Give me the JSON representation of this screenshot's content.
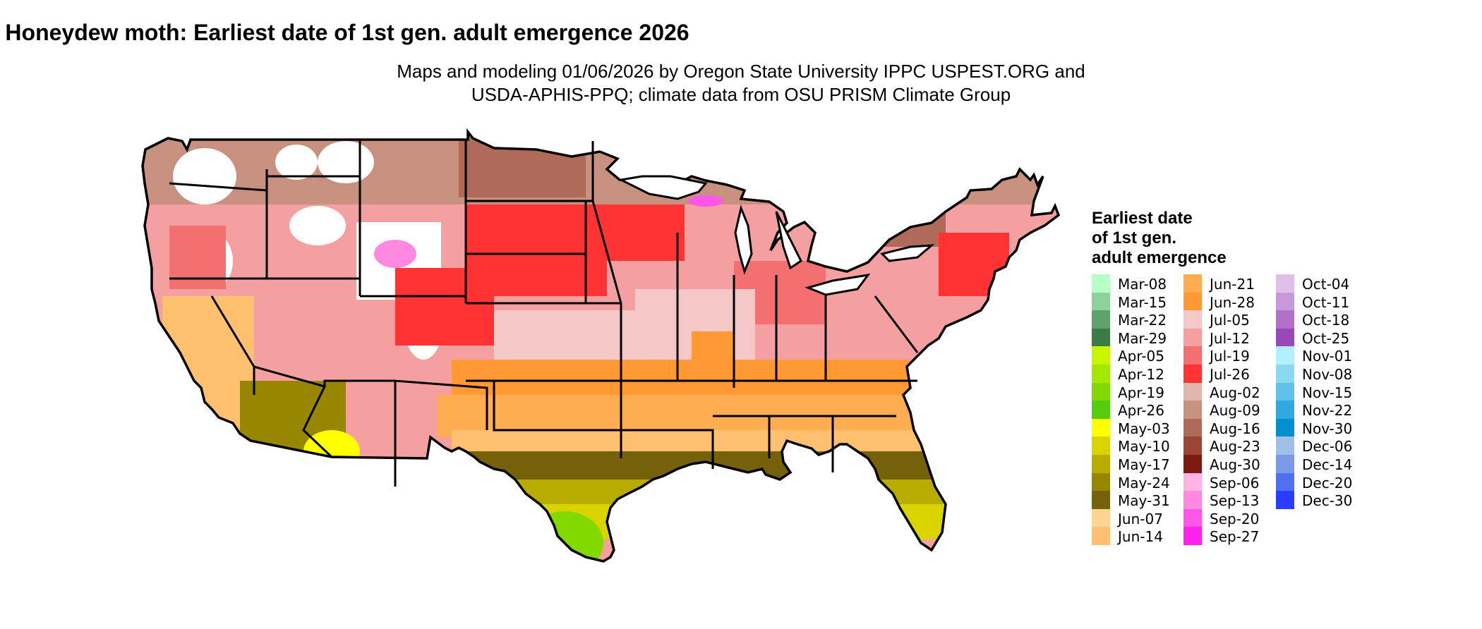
{
  "header": {
    "title": "Honeydew moth: Earliest date of 1st gen. adult emergence 2026",
    "subtitle_line1": "Maps and modeling 01/06/2026 by Oregon State University IPPC USPEST.ORG and",
    "subtitle_line2": "USDA-APHIS-PPQ; climate data from OSU PRISM Climate Group"
  },
  "legend": {
    "title_lines": [
      "Earliest date",
      "of 1st gen.",
      "adult emergence"
    ],
    "columns": [
      [
        {
          "label": "Mar-08",
          "color": "#b6ffc8"
        },
        {
          "label": "Mar-15",
          "color": "#8fd19a"
        },
        {
          "label": "Mar-22",
          "color": "#5fa36a"
        },
        {
          "label": "Mar-29",
          "color": "#3d7a45"
        },
        {
          "label": "Apr-05",
          "color": "#c8f500"
        },
        {
          "label": "Apr-12",
          "color": "#a4e800"
        },
        {
          "label": "Apr-19",
          "color": "#82d900"
        },
        {
          "label": "Apr-26",
          "color": "#55cc10"
        },
        {
          "label": "May-03",
          "color": "#ffff00"
        },
        {
          "label": "May-10",
          "color": "#d9d300"
        },
        {
          "label": "May-17",
          "color": "#b8ac00"
        },
        {
          "label": "May-24",
          "color": "#968600"
        },
        {
          "label": "May-31",
          "color": "#75610a"
        },
        {
          "label": "Jun-07",
          "color": "#ffd591"
        },
        {
          "label": "Jun-14",
          "color": "#ffc070"
        }
      ],
      [
        {
          "label": "Jun-21",
          "color": "#ffad50"
        },
        {
          "label": "Jun-28",
          "color": "#ff9933"
        },
        {
          "label": "Jul-05",
          "color": "#f5c8c8"
        },
        {
          "label": "Jul-12",
          "color": "#f4a0a0"
        },
        {
          "label": "Jul-19",
          "color": "#f47070"
        },
        {
          "label": "Jul-26",
          "color": "#ff3333"
        },
        {
          "label": "Aug-02",
          "color": "#e0b8ab"
        },
        {
          "label": "Aug-09",
          "color": "#c8907f"
        },
        {
          "label": "Aug-16",
          "color": "#b06a5a"
        },
        {
          "label": "Aug-23",
          "color": "#9a4535"
        },
        {
          "label": "Aug-30",
          "color": "#7a1a10"
        },
        {
          "label": "Sep-06",
          "color": "#ffb3e0"
        },
        {
          "label": "Sep-13",
          "color": "#ff88e0"
        },
        {
          "label": "Sep-20",
          "color": "#ff55e8"
        },
        {
          "label": "Sep-27",
          "color": "#ff22ee"
        }
      ],
      [
        {
          "label": "Oct-04",
          "color": "#e0c0e8"
        },
        {
          "label": "Oct-11",
          "color": "#c898d8"
        },
        {
          "label": "Oct-18",
          "color": "#b070c8"
        },
        {
          "label": "Oct-25",
          "color": "#9a48b8"
        },
        {
          "label": "Nov-01",
          "color": "#b0f0ff"
        },
        {
          "label": "Nov-08",
          "color": "#88d8f0"
        },
        {
          "label": "Nov-15",
          "color": "#60c0e8"
        },
        {
          "label": "Nov-22",
          "color": "#30a8e0"
        },
        {
          "label": "Nov-30",
          "color": "#0090d0"
        },
        {
          "label": "Dec-06",
          "color": "#a0c0e8"
        },
        {
          "label": "Dec-14",
          "color": "#7a9ae8"
        },
        {
          "label": "Dec-20",
          "color": "#5070f0"
        },
        {
          "label": "Dec-30",
          "color": "#2a3cff"
        }
      ]
    ]
  }
}
